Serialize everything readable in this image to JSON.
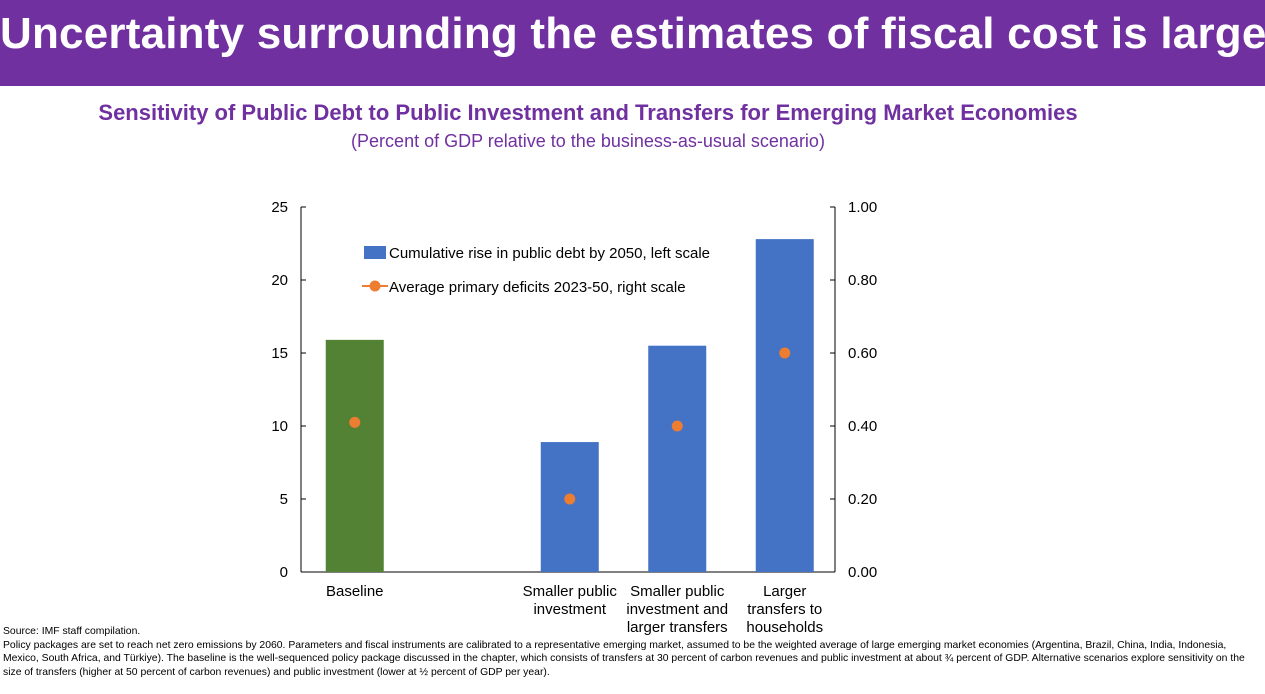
{
  "header": {
    "title": "Uncertainty surrounding the estimates of fiscal cost is large."
  },
  "chart_data": {
    "type": "bar",
    "title": "Sensitivity of Public Debt to Public Investment and Transfers for Emerging Market Economies",
    "subtitle": "(Percent of GDP relative to the business-as-usual scenario)",
    "categories": [
      [
        "Baseline"
      ],
      [
        ""
      ],
      [
        "Smaller public",
        "investment"
      ],
      [
        "Smaller public",
        "investment and",
        "larger transfers"
      ],
      [
        "Larger",
        "transfers to",
        "households"
      ]
    ],
    "series": [
      {
        "name": "Cumulative rise in public debt by 2050, left scale",
        "type": "bar",
        "axis": "left",
        "values": [
          15.9,
          null,
          8.9,
          15.5,
          22.8
        ],
        "colors": [
          "#548235",
          null,
          "#4472c4",
          "#4472c4",
          "#4472c4"
        ]
      },
      {
        "name": "Average primary deficits 2023-50, right scale",
        "type": "scatter",
        "axis": "right",
        "values": [
          0.41,
          null,
          0.2,
          0.4,
          0.6
        ],
        "color": "#ed7d31"
      }
    ],
    "left_axis": {
      "range": [
        0,
        25
      ],
      "ticks": [
        "0",
        "5",
        "10",
        "15",
        "20",
        "25"
      ]
    },
    "right_axis": {
      "range": [
        0,
        1.0
      ],
      "ticks": [
        "0.00",
        "0.20",
        "0.40",
        "0.60",
        "0.80",
        "1.00"
      ]
    },
    "legend_position": "top-center",
    "grid": false
  },
  "notes": {
    "source": "Source: IMF staff compilation.",
    "body": "Policy packages are set to reach net zero emissions by 2060. Parameters and fiscal instruments are calibrated to a representative emerging market, assumed to be the weighted average of large emerging market economies (Argentina, Brazil, China, India, Indonesia, Mexico, South Africa, and Türkiye). The baseline is the well-sequenced policy package discussed in the chapter, which consists of transfers at 30 percent of carbon revenues and public investment at about ¾ percent of GDP. Alternative scenarios explore sensitivity on the size of transfers (higher at 50 percent of carbon revenues) and public investment (lower at ½ percent of GDP per year)."
  }
}
